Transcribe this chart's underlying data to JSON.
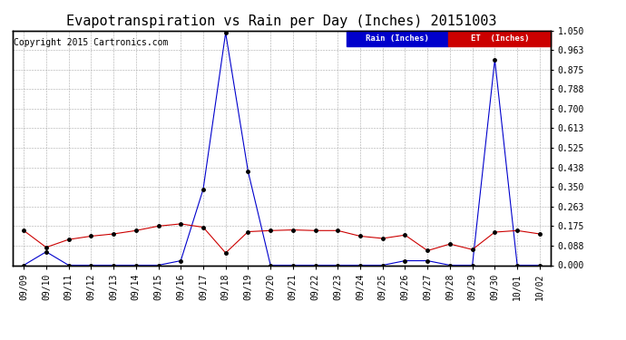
{
  "title": "Evapotranspiration vs Rain per Day (Inches) 20151003",
  "copyright": "Copyright 2015 Cartronics.com",
  "legend_rain": "Rain (Inches)",
  "legend_et": "ET  (Inches)",
  "legend_rain_bg": "#0000cc",
  "legend_et_bg": "#cc0000",
  "background_color": "#ffffff",
  "grid_color": "#aaaaaa",
  "dates": [
    "09/09",
    "09/10",
    "09/11",
    "09/12",
    "09/13",
    "09/14",
    "09/15",
    "09/16",
    "09/17",
    "09/18",
    "09/19",
    "09/20",
    "09/21",
    "09/22",
    "09/23",
    "09/24",
    "09/25",
    "09/26",
    "09/27",
    "09/28",
    "09/29",
    "09/30",
    "10/01",
    "10/02"
  ],
  "rain": [
    0.0,
    0.06,
    0.0,
    0.0,
    0.0,
    0.0,
    0.0,
    0.02,
    0.34,
    1.04,
    0.42,
    0.0,
    0.0,
    0.0,
    0.0,
    0.0,
    0.0,
    0.02,
    0.02,
    0.0,
    0.0,
    0.92,
    0.0,
    0.0
  ],
  "et": [
    0.155,
    0.08,
    0.115,
    0.13,
    0.14,
    0.155,
    0.175,
    0.185,
    0.17,
    0.055,
    0.15,
    0.155,
    0.158,
    0.155,
    0.155,
    0.13,
    0.12,
    0.135,
    0.065,
    0.095,
    0.07,
    0.148,
    0.155,
    0.14
  ],
  "ylim": [
    0.0,
    1.05
  ],
  "yticks": [
    0.0,
    0.088,
    0.175,
    0.263,
    0.35,
    0.438,
    0.525,
    0.613,
    0.7,
    0.788,
    0.875,
    0.963,
    1.05
  ],
  "rain_color": "#0000cc",
  "et_color": "#cc0000",
  "marker_color": "#000000",
  "title_fontsize": 11,
  "axis_fontsize": 7,
  "copyright_fontsize": 7
}
